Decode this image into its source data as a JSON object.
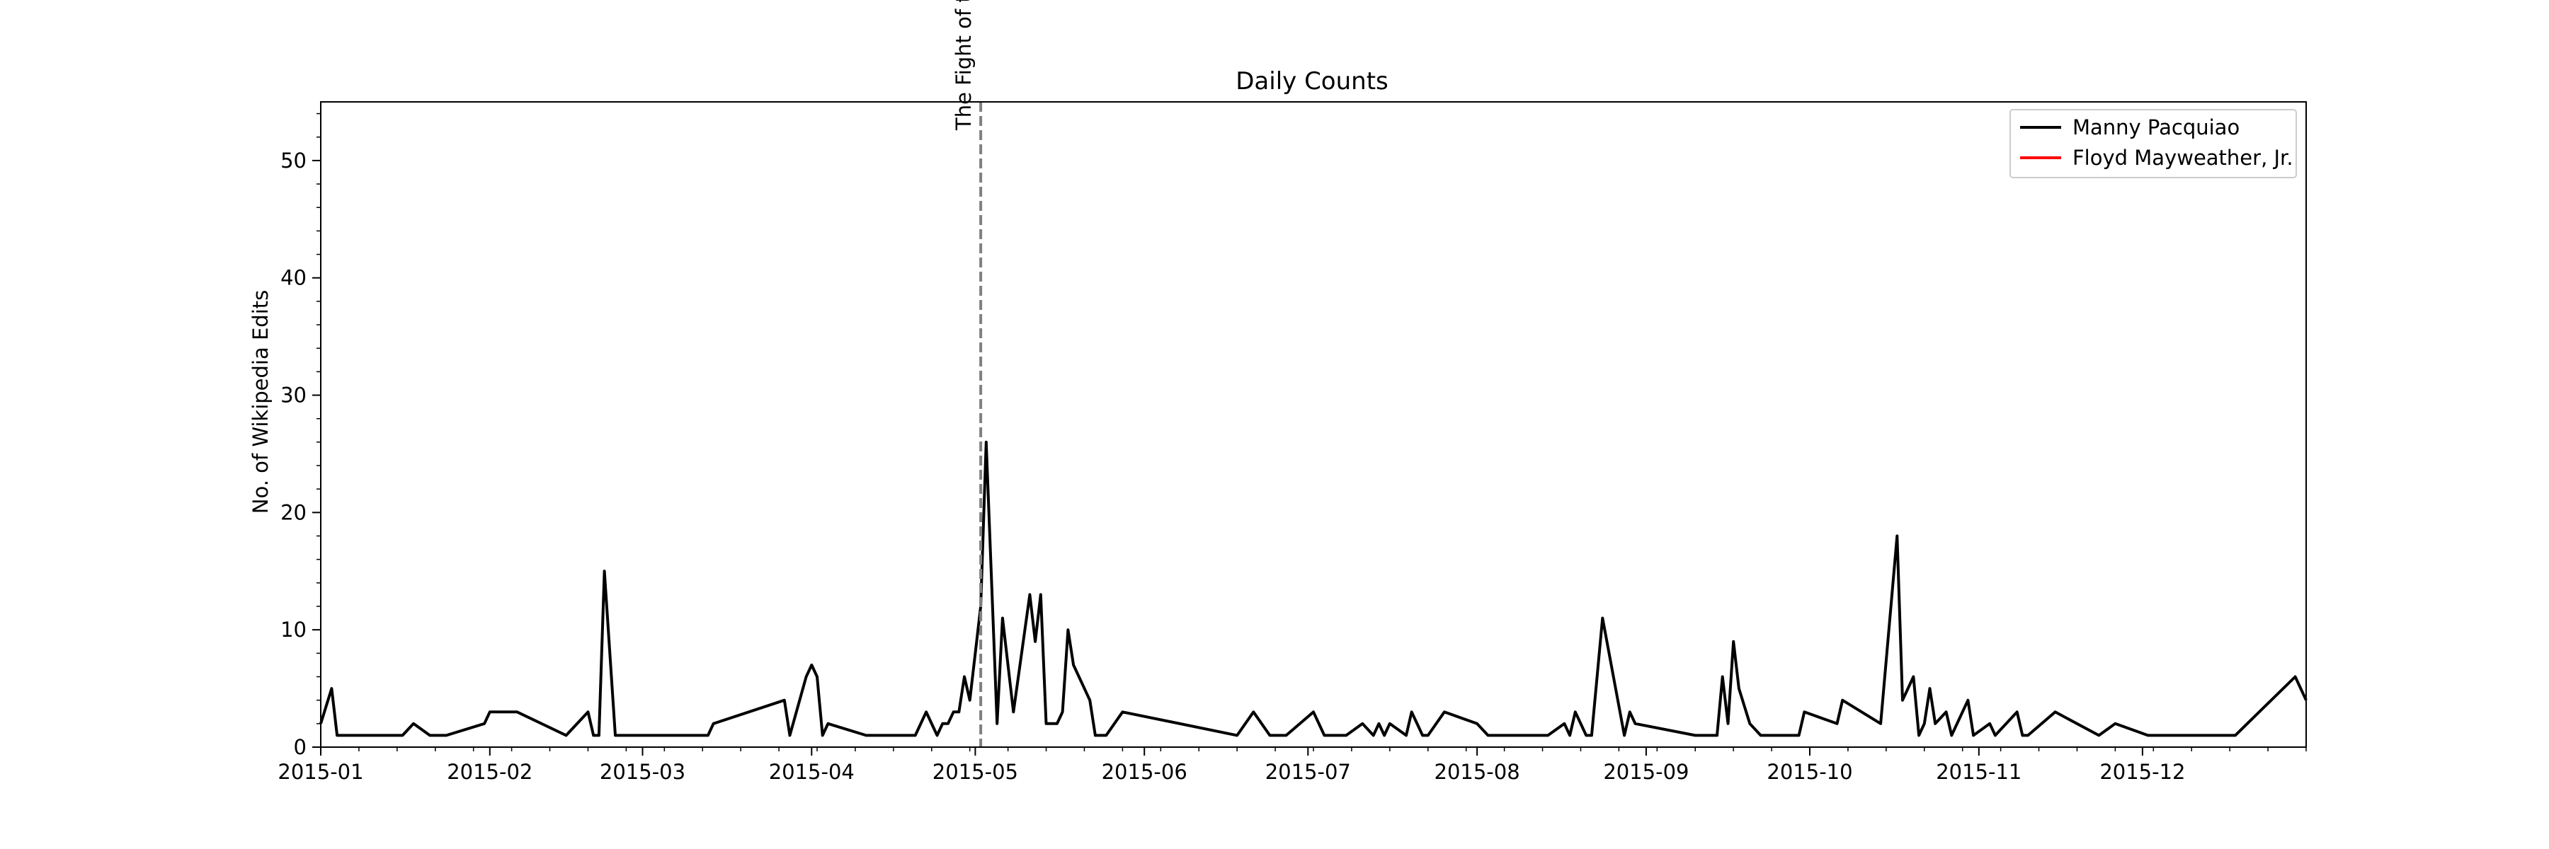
{
  "chart_data": {
    "type": "line",
    "title": "Daily Counts",
    "xlabel": "",
    "ylabel": "No. of Wikipedia Edits",
    "xlim": [
      "2015-01-01",
      "2015-12-31"
    ],
    "ylim": [
      0,
      55
    ],
    "y_ticks": [
      0,
      10,
      20,
      30,
      40,
      50
    ],
    "x_ticks": [
      "2015-01-01",
      "2015-02-01",
      "2015-03-01",
      "2015-04-01",
      "2015-05-01",
      "2015-06-01",
      "2015-07-01",
      "2015-08-01",
      "2015-09-01",
      "2015-10-01",
      "2015-11-01",
      "2015-12-01"
    ],
    "x_tick_labels": [
      "2015-01",
      "2015-02",
      "2015-03",
      "2015-04",
      "2015-05",
      "2015-06",
      "2015-07",
      "2015-08",
      "2015-09",
      "2015-10",
      "2015-11",
      "2015-12"
    ],
    "grid": false,
    "legend": "top-right",
    "annotation": {
      "date": "2015-05-02",
      "label": "The Fight of t",
      "style": "dashed",
      "color": "#808080"
    },
    "series": [
      {
        "name": "Manny Pacquiao",
        "color": "#000000",
        "points": [
          [
            "2015-01-01",
            2
          ],
          [
            "2015-01-03",
            5
          ],
          [
            "2015-01-04",
            1
          ],
          [
            "2015-01-16",
            1
          ],
          [
            "2015-01-18",
            2
          ],
          [
            "2015-01-21",
            1
          ],
          [
            "2015-01-24",
            1
          ],
          [
            "2015-01-31",
            2
          ],
          [
            "2015-02-01",
            3
          ],
          [
            "2015-02-06",
            3
          ],
          [
            "2015-02-15",
            1
          ],
          [
            "2015-02-17",
            2
          ],
          [
            "2015-02-19",
            3
          ],
          [
            "2015-02-20",
            1
          ],
          [
            "2015-02-21",
            1
          ],
          [
            "2015-02-22",
            15
          ],
          [
            "2015-02-24",
            1
          ],
          [
            "2015-03-13",
            1
          ],
          [
            "2015-03-14",
            2
          ],
          [
            "2015-03-27",
            4
          ],
          [
            "2015-03-28",
            1
          ],
          [
            "2015-03-31",
            6
          ],
          [
            "2015-04-01",
            7
          ],
          [
            "2015-04-02",
            6
          ],
          [
            "2015-04-03",
            1
          ],
          [
            "2015-04-04",
            2
          ],
          [
            "2015-04-11",
            1
          ],
          [
            "2015-04-20",
            1
          ],
          [
            "2015-04-22",
            3
          ],
          [
            "2015-04-24",
            1
          ],
          [
            "2015-04-25",
            2
          ],
          [
            "2015-04-26",
            2
          ],
          [
            "2015-04-27",
            3
          ],
          [
            "2015-04-28",
            3
          ],
          [
            "2015-04-29",
            6
          ],
          [
            "2015-04-30",
            4
          ],
          [
            "2015-05-02",
            12
          ],
          [
            "2015-05-03",
            26
          ],
          [
            "2015-05-05",
            2
          ],
          [
            "2015-05-06",
            11
          ],
          [
            "2015-05-08",
            3
          ],
          [
            "2015-05-11",
            13
          ],
          [
            "2015-05-12",
            9
          ],
          [
            "2015-05-13",
            13
          ],
          [
            "2015-05-14",
            2
          ],
          [
            "2015-05-16",
            2
          ],
          [
            "2015-05-17",
            3
          ],
          [
            "2015-05-18",
            10
          ],
          [
            "2015-05-19",
            7
          ],
          [
            "2015-05-22",
            4
          ],
          [
            "2015-05-23",
            1
          ],
          [
            "2015-05-25",
            1
          ],
          [
            "2015-05-28",
            3
          ],
          [
            "2015-06-18",
            1
          ],
          [
            "2015-06-21",
            3
          ],
          [
            "2015-06-24",
            1
          ],
          [
            "2015-06-27",
            1
          ],
          [
            "2015-07-02",
            3
          ],
          [
            "2015-07-04",
            1
          ],
          [
            "2015-07-08",
            1
          ],
          [
            "2015-07-11",
            2
          ],
          [
            "2015-07-13",
            1
          ],
          [
            "2015-07-14",
            2
          ],
          [
            "2015-07-15",
            1
          ],
          [
            "2015-07-16",
            2
          ],
          [
            "2015-07-19",
            1
          ],
          [
            "2015-07-20",
            3
          ],
          [
            "2015-07-22",
            1
          ],
          [
            "2015-07-23",
            1
          ],
          [
            "2015-07-26",
            3
          ],
          [
            "2015-08-01",
            2
          ],
          [
            "2015-08-03",
            1
          ],
          [
            "2015-08-14",
            1
          ],
          [
            "2015-08-17",
            2
          ],
          [
            "2015-08-18",
            1
          ],
          [
            "2015-08-19",
            3
          ],
          [
            "2015-08-21",
            1
          ],
          [
            "2015-08-22",
            1
          ],
          [
            "2015-08-24",
            11
          ],
          [
            "2015-08-28",
            1
          ],
          [
            "2015-08-29",
            3
          ],
          [
            "2015-08-30",
            2
          ],
          [
            "2015-09-10",
            1
          ],
          [
            "2015-09-14",
            1
          ],
          [
            "2015-09-15",
            6
          ],
          [
            "2015-09-16",
            2
          ],
          [
            "2015-09-17",
            9
          ],
          [
            "2015-09-18",
            5
          ],
          [
            "2015-09-20",
            2
          ],
          [
            "2015-09-22",
            1
          ],
          [
            "2015-09-29",
            1
          ],
          [
            "2015-09-30",
            3
          ],
          [
            "2015-10-06",
            2
          ],
          [
            "2015-10-07",
            4
          ],
          [
            "2015-10-14",
            2
          ],
          [
            "2015-10-17",
            18
          ],
          [
            "2015-10-18",
            4
          ],
          [
            "2015-10-20",
            6
          ],
          [
            "2015-10-21",
            1
          ],
          [
            "2015-10-22",
            2
          ],
          [
            "2015-10-23",
            5
          ],
          [
            "2015-10-24",
            2
          ],
          [
            "2015-10-26",
            3
          ],
          [
            "2015-10-27",
            1
          ],
          [
            "2015-10-30",
            4
          ],
          [
            "2015-10-31",
            1
          ],
          [
            "2015-11-03",
            2
          ],
          [
            "2015-11-04",
            1
          ],
          [
            "2015-11-08",
            3
          ],
          [
            "2015-11-09",
            1
          ],
          [
            "2015-11-10",
            1
          ],
          [
            "2015-11-15",
            3
          ],
          [
            "2015-11-23",
            1
          ],
          [
            "2015-11-26",
            2
          ],
          [
            "2015-12-02",
            1
          ],
          [
            "2015-12-18",
            1
          ],
          [
            "2015-12-29",
            6
          ],
          [
            "2015-12-31",
            4
          ]
        ]
      },
      {
        "name": "Floyd Mayweather, Jr.",
        "color": "#ff0000",
        "points": []
      }
    ]
  }
}
